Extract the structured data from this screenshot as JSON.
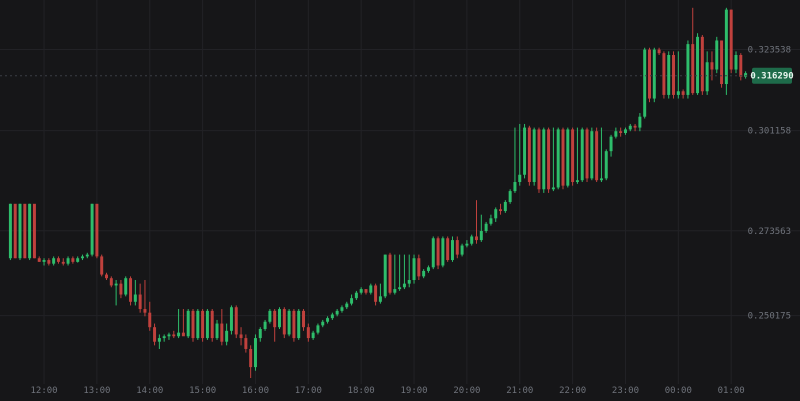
{
  "chart_data": {
    "type": "candlestick",
    "title": "",
    "xlabel": "",
    "ylabel": "",
    "ylim": [
      0.233,
      0.3355
    ],
    "grid": true,
    "colors": {
      "background": "#161618",
      "up": "#2ebd6b",
      "down": "#c0413d",
      "grid": "#222226",
      "tick_text": "#6f737b",
      "current_price_bg": "#1e6b4a",
      "current_price_text": "#e8f5ee"
    },
    "y_ticks": [
      {
        "value": 0.32353,
        "label": "0.323538"
      },
      {
        "value": 0.301157,
        "label": "0.301158"
      },
      {
        "value": 0.273563,
        "label": "0.273563"
      },
      {
        "value": 0.250175,
        "label": "0.250175"
      }
    ],
    "x_ticks": [
      {
        "index": 7,
        "label": "12:00"
      },
      {
        "index": 18,
        "label": "13:00"
      },
      {
        "index": 29,
        "label": "14:00"
      },
      {
        "index": 40,
        "label": "15:00"
      },
      {
        "index": 51,
        "label": "16:00"
      },
      {
        "index": 62,
        "label": "17:00"
      },
      {
        "index": 73,
        "label": "18:00"
      },
      {
        "index": 84,
        "label": "19:00"
      },
      {
        "index": 95,
        "label": "20:00"
      },
      {
        "index": 106,
        "label": "21:00"
      },
      {
        "index": 117,
        "label": "22:00"
      },
      {
        "index": 128,
        "label": "23:00"
      },
      {
        "index": 139,
        "label": "00:00"
      },
      {
        "index": 150,
        "label": "01:00"
      }
    ],
    "current_price": {
      "value": 0.31629,
      "label": "0.316290"
    },
    "candles": [
      [
        0.266,
        0.281,
        0.2655,
        0.281
      ],
      [
        0.281,
        0.2805,
        0.266,
        0.266
      ],
      [
        0.266,
        0.281,
        0.2655,
        0.281
      ],
      [
        0.281,
        0.2805,
        0.266,
        0.266
      ],
      [
        0.266,
        0.281,
        0.2655,
        0.281
      ],
      [
        0.281,
        0.2805,
        0.266,
        0.266
      ],
      [
        0.266,
        0.2665,
        0.265,
        0.265
      ],
      [
        0.265,
        0.266,
        0.264,
        0.2655
      ],
      [
        0.2655,
        0.266,
        0.264,
        0.2645
      ],
      [
        0.2645,
        0.2665,
        0.264,
        0.266
      ],
      [
        0.266,
        0.2665,
        0.2645,
        0.265
      ],
      [
        0.265,
        0.266,
        0.264,
        0.2645
      ],
      [
        0.2645,
        0.2665,
        0.264,
        0.266
      ],
      [
        0.266,
        0.2665,
        0.2645,
        0.265
      ],
      [
        0.265,
        0.2665,
        0.2648,
        0.266
      ],
      [
        0.266,
        0.267,
        0.2655,
        0.2665
      ],
      [
        0.2665,
        0.2675,
        0.266,
        0.267
      ],
      [
        0.267,
        0.281,
        0.2665,
        0.281
      ],
      [
        0.281,
        0.2805,
        0.266,
        0.2665
      ],
      [
        0.2665,
        0.267,
        0.261,
        0.2615
      ],
      [
        0.2615,
        0.262,
        0.26,
        0.2605
      ],
      [
        0.2605,
        0.261,
        0.258,
        0.2585
      ],
      [
        0.2585,
        0.26,
        0.253,
        0.259
      ],
      [
        0.259,
        0.26,
        0.255,
        0.256
      ],
      [
        0.256,
        0.261,
        0.2555,
        0.2605
      ],
      [
        0.2605,
        0.261,
        0.253,
        0.254
      ],
      [
        0.254,
        0.26,
        0.253,
        0.256
      ],
      [
        0.256,
        0.259,
        0.251,
        0.252
      ],
      [
        0.252,
        0.26,
        0.25,
        0.251
      ],
      [
        0.251,
        0.254,
        0.246,
        0.247
      ],
      [
        0.247,
        0.248,
        0.242,
        0.243
      ],
      [
        0.243,
        0.245,
        0.241,
        0.244
      ],
      [
        0.244,
        0.245,
        0.243,
        0.2445
      ],
      [
        0.2445,
        0.2455,
        0.2435,
        0.245
      ],
      [
        0.245,
        0.246,
        0.244,
        0.2445
      ],
      [
        0.2445,
        0.252,
        0.244,
        0.2455
      ],
      [
        0.2455,
        0.252,
        0.245,
        0.2445
      ],
      [
        0.2445,
        0.252,
        0.244,
        0.2515
      ],
      [
        0.2515,
        0.252,
        0.243,
        0.244
      ],
      [
        0.244,
        0.252,
        0.2435,
        0.2515
      ],
      [
        0.2515,
        0.252,
        0.243,
        0.244
      ],
      [
        0.244,
        0.252,
        0.2435,
        0.2515
      ],
      [
        0.2515,
        0.252,
        0.243,
        0.244
      ],
      [
        0.244,
        0.249,
        0.2435,
        0.248
      ],
      [
        0.248,
        0.252,
        0.242,
        0.243
      ],
      [
        0.243,
        0.248,
        0.242,
        0.246
      ],
      [
        0.246,
        0.253,
        0.245,
        0.2525
      ],
      [
        0.2525,
        0.253,
        0.244,
        0.245
      ],
      [
        0.245,
        0.247,
        0.242,
        0.244
      ],
      [
        0.244,
        0.245,
        0.24,
        0.241
      ],
      [
        0.241,
        0.242,
        0.233,
        0.236
      ],
      [
        0.236,
        0.245,
        0.235,
        0.244
      ],
      [
        0.244,
        0.247,
        0.243,
        0.2465
      ],
      [
        0.2465,
        0.249,
        0.246,
        0.2485
      ],
      [
        0.2485,
        0.252,
        0.248,
        0.2515
      ],
      [
        0.2515,
        0.252,
        0.243,
        0.247
      ],
      [
        0.247,
        0.2525,
        0.2465,
        0.252
      ],
      [
        0.252,
        0.2525,
        0.244,
        0.245
      ],
      [
        0.245,
        0.252,
        0.2445,
        0.2515
      ],
      [
        0.2515,
        0.252,
        0.243,
        0.244
      ],
      [
        0.244,
        0.252,
        0.2435,
        0.2515
      ],
      [
        0.2515,
        0.252,
        0.246,
        0.247
      ],
      [
        0.247,
        0.248,
        0.243,
        0.244
      ],
      [
        0.244,
        0.246,
        0.2435,
        0.2455
      ],
      [
        0.2455,
        0.248,
        0.245,
        0.2475
      ],
      [
        0.2475,
        0.249,
        0.247,
        0.2485
      ],
      [
        0.2485,
        0.25,
        0.248,
        0.2495
      ],
      [
        0.2495,
        0.251,
        0.249,
        0.2505
      ],
      [
        0.2505,
        0.252,
        0.25,
        0.2515
      ],
      [
        0.2515,
        0.253,
        0.251,
        0.2525
      ],
      [
        0.2525,
        0.254,
        0.252,
        0.2535
      ],
      [
        0.2535,
        0.256,
        0.253,
        0.255
      ],
      [
        0.255,
        0.257,
        0.2545,
        0.2565
      ],
      [
        0.2565,
        0.258,
        0.256,
        0.2575
      ],
      [
        0.2575,
        0.257,
        0.256,
        0.2565
      ],
      [
        0.2565,
        0.259,
        0.256,
        0.2585
      ],
      [
        0.2585,
        0.259,
        0.253,
        0.254
      ],
      [
        0.254,
        0.259,
        0.2535,
        0.2555
      ],
      [
        0.2555,
        0.267,
        0.255,
        0.267
      ],
      [
        0.267,
        0.2675,
        0.256,
        0.2565
      ],
      [
        0.2565,
        0.267,
        0.256,
        0.2575
      ],
      [
        0.2575,
        0.267,
        0.257,
        0.258
      ],
      [
        0.258,
        0.267,
        0.2575,
        0.259
      ],
      [
        0.259,
        0.267,
        0.258,
        0.26
      ],
      [
        0.26,
        0.267,
        0.259,
        0.266
      ],
      [
        0.266,
        0.267,
        0.26,
        0.261
      ],
      [
        0.261,
        0.263,
        0.2605,
        0.2625
      ],
      [
        0.2625,
        0.264,
        0.262,
        0.2635
      ],
      [
        0.2635,
        0.272,
        0.263,
        0.2715
      ],
      [
        0.2715,
        0.272,
        0.263,
        0.264
      ],
      [
        0.264,
        0.272,
        0.2635,
        0.2715
      ],
      [
        0.2715,
        0.272,
        0.265,
        0.2655
      ],
      [
        0.2655,
        0.272,
        0.265,
        0.271
      ],
      [
        0.271,
        0.272,
        0.266,
        0.267
      ],
      [
        0.267,
        0.27,
        0.2665,
        0.2695
      ],
      [
        0.2695,
        0.271,
        0.269,
        0.27
      ],
      [
        0.27,
        0.2725,
        0.2695,
        0.272
      ],
      [
        0.272,
        0.282,
        0.27,
        0.271
      ],
      [
        0.271,
        0.278,
        0.2705,
        0.2735
      ],
      [
        0.2735,
        0.276,
        0.273,
        0.2755
      ],
      [
        0.2755,
        0.278,
        0.275,
        0.277
      ],
      [
        0.277,
        0.28,
        0.276,
        0.2795
      ],
      [
        0.2795,
        0.281,
        0.278,
        0.279
      ],
      [
        0.279,
        0.282,
        0.2785,
        0.2815
      ],
      [
        0.2815,
        0.285,
        0.281,
        0.2845
      ],
      [
        0.2845,
        0.302,
        0.284,
        0.287
      ],
      [
        0.287,
        0.303,
        0.286,
        0.289
      ],
      [
        0.289,
        0.303,
        0.288,
        0.302
      ],
      [
        0.302,
        0.3025,
        0.286,
        0.287
      ],
      [
        0.287,
        0.302,
        0.286,
        0.3015
      ],
      [
        0.3015,
        0.302,
        0.284,
        0.285
      ],
      [
        0.285,
        0.302,
        0.284,
        0.3015
      ],
      [
        0.3015,
        0.302,
        0.284,
        0.285
      ],
      [
        0.285,
        0.302,
        0.2845,
        0.2855
      ],
      [
        0.2855,
        0.302,
        0.285,
        0.3015
      ],
      [
        0.3015,
        0.302,
        0.285,
        0.286
      ],
      [
        0.286,
        0.302,
        0.2855,
        0.3015
      ],
      [
        0.3015,
        0.302,
        0.286,
        0.287
      ],
      [
        0.287,
        0.302,
        0.2865,
        0.2875
      ],
      [
        0.2875,
        0.302,
        0.287,
        0.3015
      ],
      [
        0.3015,
        0.302,
        0.287,
        0.288
      ],
      [
        0.288,
        0.302,
        0.2875,
        0.301
      ],
      [
        0.301,
        0.302,
        0.287,
        0.2875
      ],
      [
        0.2875,
        0.302,
        0.287,
        0.288
      ],
      [
        0.288,
        0.296,
        0.2875,
        0.2955
      ],
      [
        0.2955,
        0.3,
        0.294,
        0.2995
      ],
      [
        0.2995,
        0.302,
        0.299,
        0.301
      ],
      [
        0.301,
        0.302,
        0.2995,
        0.3005
      ],
      [
        0.3005,
        0.302,
        0.3,
        0.3015
      ],
      [
        0.3015,
        0.303,
        0.301,
        0.3025
      ],
      [
        0.3025,
        0.303,
        0.301,
        0.302
      ],
      [
        0.302,
        0.306,
        0.301,
        0.305
      ],
      [
        0.305,
        0.324,
        0.3045,
        0.3235
      ],
      [
        0.3235,
        0.324,
        0.309,
        0.31
      ],
      [
        0.31,
        0.324,
        0.309,
        0.3235
      ],
      [
        0.3235,
        0.324,
        0.322,
        0.3225
      ],
      [
        0.3225,
        0.323,
        0.31,
        0.311
      ],
      [
        0.311,
        0.323,
        0.31,
        0.322
      ],
      [
        0.322,
        0.323,
        0.31,
        0.311
      ],
      [
        0.311,
        0.323,
        0.31,
        0.312
      ],
      [
        0.312,
        0.3125,
        0.31,
        0.311
      ],
      [
        0.311,
        0.326,
        0.31,
        0.325
      ],
      [
        0.325,
        0.335,
        0.311,
        0.3115
      ],
      [
        0.3115,
        0.328,
        0.311,
        0.327
      ],
      [
        0.327,
        0.3275,
        0.311,
        0.312
      ],
      [
        0.312,
        0.323,
        0.311,
        0.32
      ],
      [
        0.32,
        0.323,
        0.315,
        0.318
      ],
      [
        0.318,
        0.327,
        0.317,
        0.326
      ],
      [
        0.326,
        0.326,
        0.313,
        0.314
      ],
      [
        0.314,
        0.335,
        0.311,
        0.3345
      ],
      [
        0.3345,
        0.3345,
        0.317,
        0.318
      ],
      [
        0.318,
        0.323,
        0.317,
        0.322
      ],
      [
        0.322,
        0.3225,
        0.315,
        0.316
      ],
      [
        0.316,
        0.3175,
        0.3155,
        0.317
      ]
    ]
  }
}
